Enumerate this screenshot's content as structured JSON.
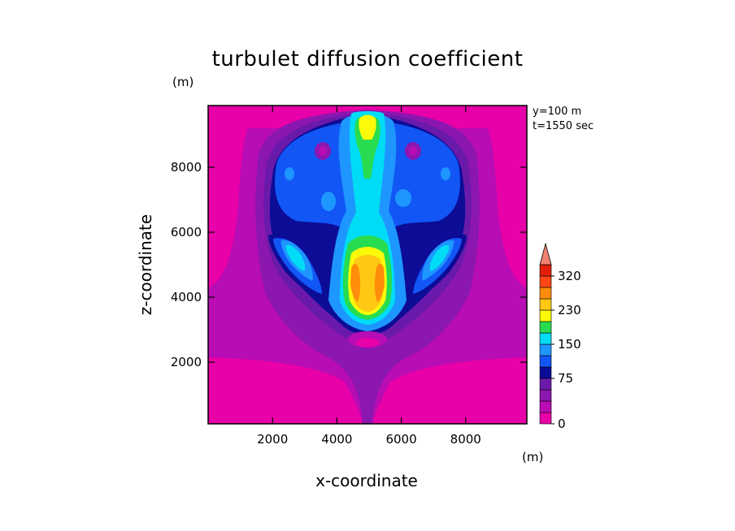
{
  "chart_data": {
    "type": "heatmap",
    "title": "turbulet diffusion coefficient",
    "xlabel": "x-coordinate",
    "ylabel": "z-coordinate",
    "x_unit": "(m)",
    "y_unit": "(m)",
    "annotations": [
      "y=100 m",
      "t=1550 sec"
    ],
    "xlim": [
      0,
      9900
    ],
    "ylim": [
      100,
      9900
    ],
    "x_ticks": [
      2000,
      4000,
      6000,
      8000
    ],
    "y_ticks": [
      2000,
      4000,
      6000,
      8000
    ],
    "colorbar": {
      "tick_labels": [
        {
          "value": 0,
          "label": "0"
        },
        {
          "value": 75,
          "label": "75"
        },
        {
          "value": 150,
          "label": "150"
        },
        {
          "value": 230,
          "label": "230"
        },
        {
          "value": 320,
          "label": "320"
        }
      ],
      "levels": [
        0,
        20,
        40,
        55,
        75,
        95,
        115,
        150,
        175,
        200,
        230,
        260,
        290,
        320
      ],
      "colors": [
        "#e800a8",
        "#b80cb4",
        "#8c16b0",
        "#6a1aaa",
        "#0c0c96",
        "#1256f6",
        "#1e96ff",
        "#00dcf6",
        "#28dc50",
        "#fafa0a",
        "#ffc814",
        "#ff8c0a",
        "#ff4614",
        "#e01e0a"
      ],
      "extend_max_color": "#f08070"
    }
  }
}
